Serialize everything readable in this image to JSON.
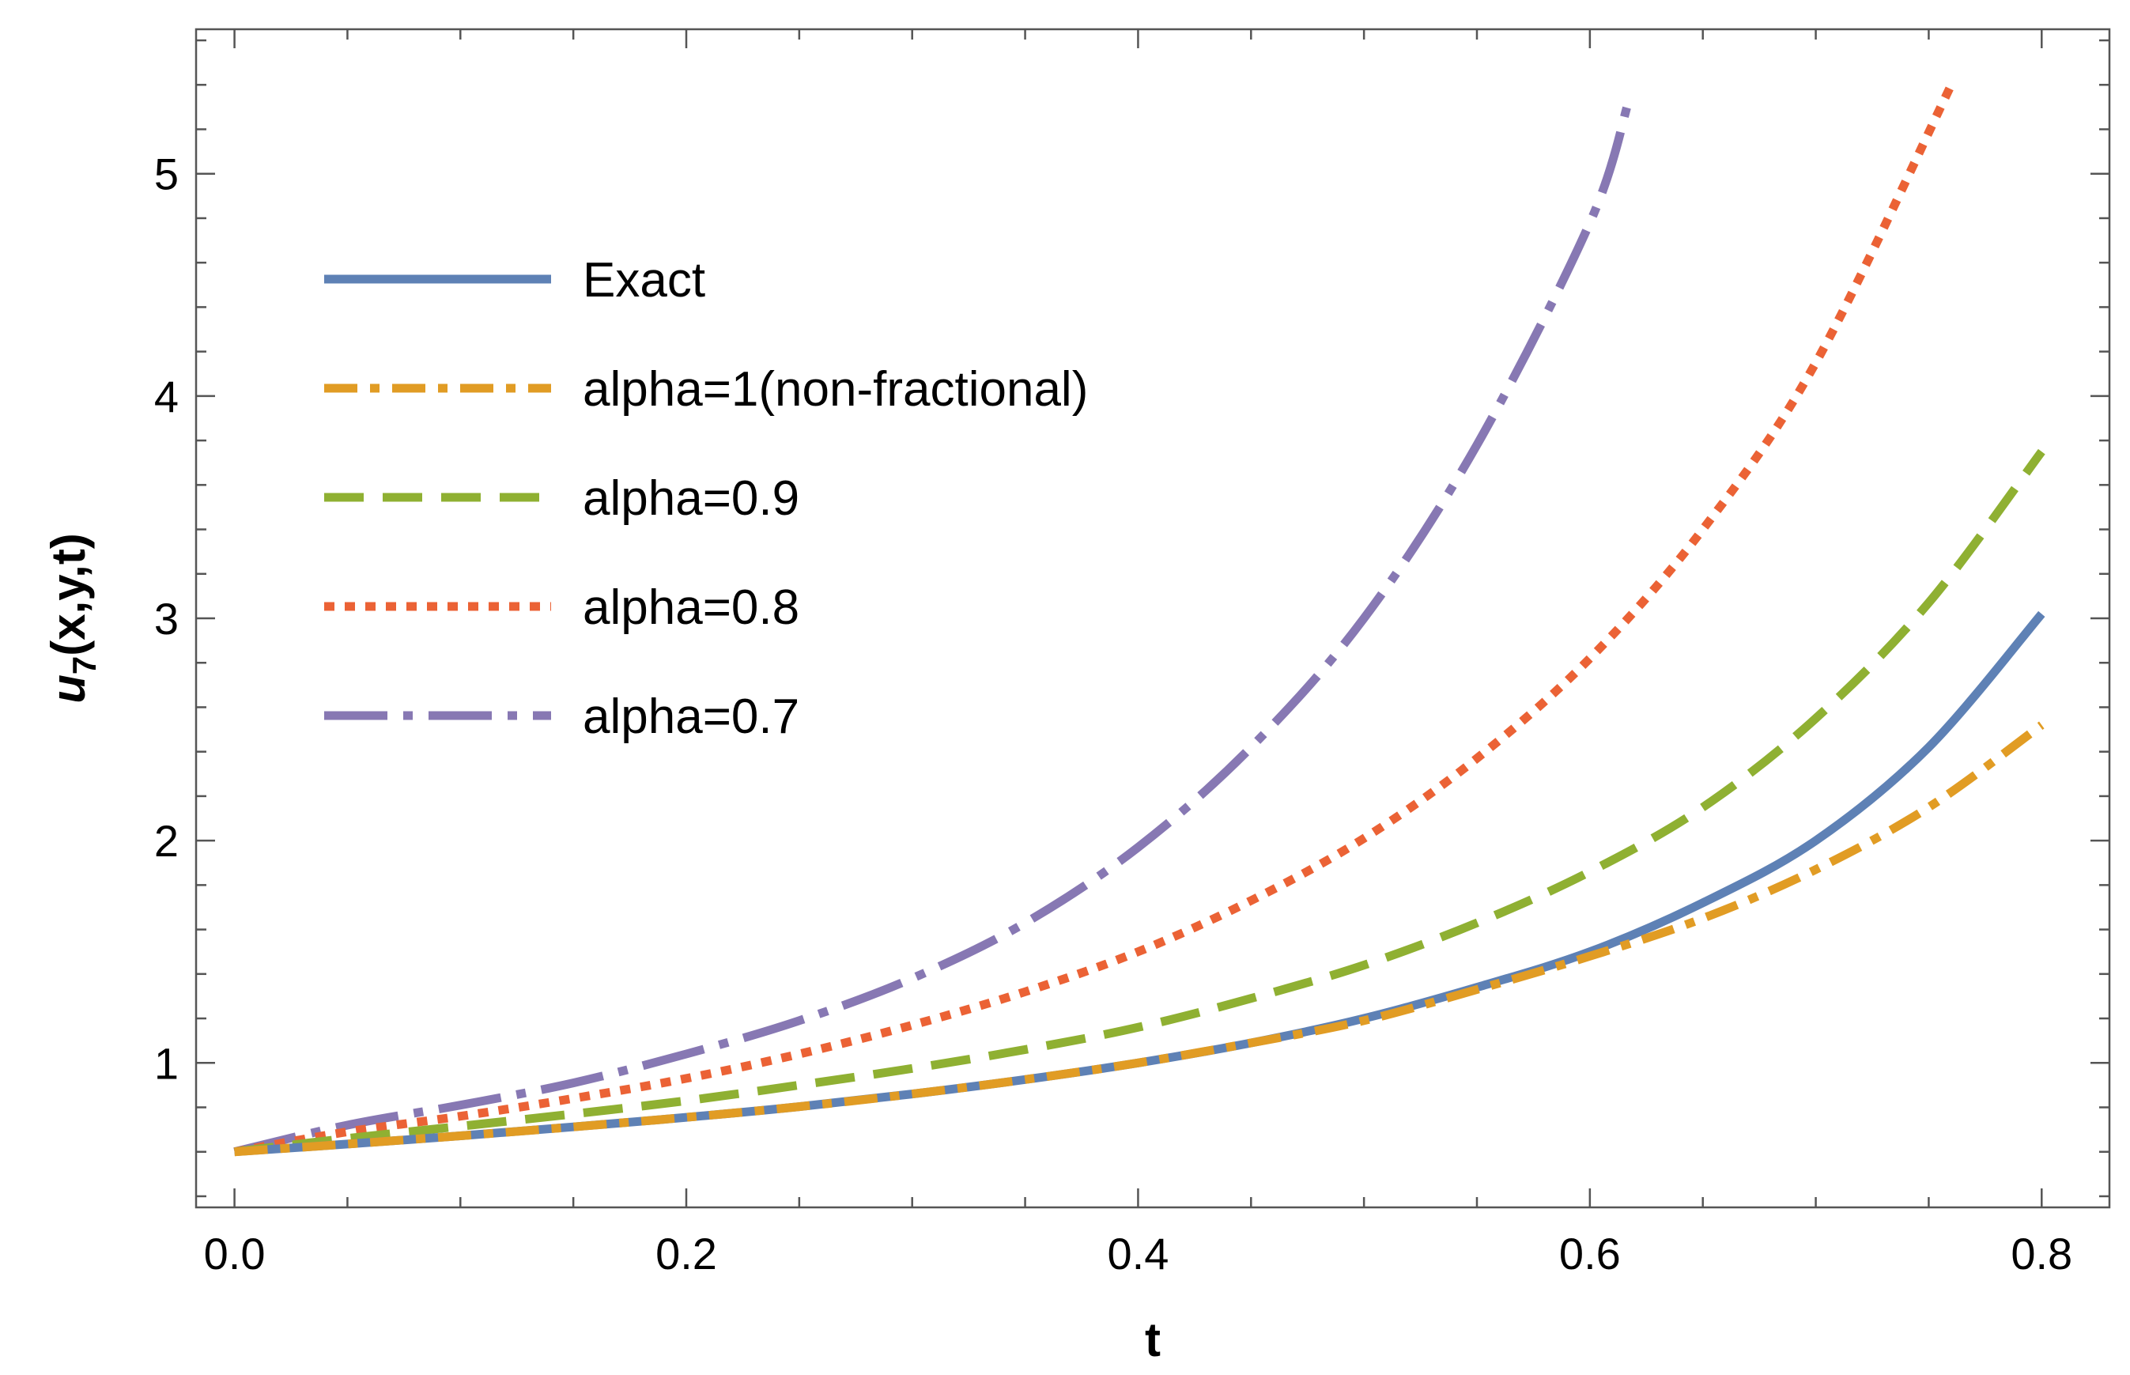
{
  "chart_data": {
    "type": "line",
    "title": "",
    "xlabel": "t",
    "ylabel_main": "u",
    "ylabel_sub": "7",
    "ylabel_rest": "(x,y,t)",
    "xlim": [
      -0.017,
      0.83
    ],
    "ylim": [
      0.35,
      5.65
    ],
    "x_ticks": [
      0.0,
      0.2,
      0.4,
      0.6,
      0.8
    ],
    "x_tick_labels": [
      "0.0",
      "0.2",
      "0.4",
      "0.6",
      "0.8"
    ],
    "x_minor_step": 0.05,
    "y_ticks": [
      1,
      2,
      3,
      4,
      5
    ],
    "y_tick_labels": [
      "1",
      "2",
      "3",
      "4",
      "5"
    ],
    "y_minor_step": 0.2,
    "grid": false,
    "legend_position": "top-left",
    "series": [
      {
        "name": "Exact",
        "color": "#5E81B5",
        "style": "solid",
        "x": [
          0,
          0.05,
          0.1,
          0.15,
          0.2,
          0.25,
          0.3,
          0.35,
          0.4,
          0.45,
          0.5,
          0.55,
          0.6,
          0.65,
          0.7,
          0.75,
          0.8
        ],
        "y": [
          0.6,
          0.635,
          0.672,
          0.712,
          0.755,
          0.803,
          0.86,
          0.925,
          1.0,
          1.09,
          1.2,
          1.34,
          1.5,
          1.72,
          2.0,
          2.42,
          3.02
        ]
      },
      {
        "name": "alpha=1(non-fractional)",
        "color": "#E19C24",
        "style": "dashdot",
        "x": [
          0,
          0.05,
          0.1,
          0.15,
          0.2,
          0.25,
          0.3,
          0.35,
          0.4,
          0.45,
          0.5,
          0.55,
          0.6,
          0.65,
          0.7,
          0.75,
          0.8
        ],
        "y": [
          0.6,
          0.635,
          0.672,
          0.712,
          0.755,
          0.803,
          0.86,
          0.925,
          1.0,
          1.09,
          1.19,
          1.33,
          1.48,
          1.65,
          1.87,
          2.15,
          2.52
        ]
      },
      {
        "name": "alpha=0.9",
        "color": "#8FB032",
        "style": "dashed",
        "x": [
          0,
          0.05,
          0.1,
          0.15,
          0.2,
          0.25,
          0.3,
          0.35,
          0.4,
          0.45,
          0.5,
          0.55,
          0.6,
          0.65,
          0.7,
          0.75,
          0.8
        ],
        "y": [
          0.6,
          0.66,
          0.715,
          0.77,
          0.83,
          0.9,
          0.975,
          1.06,
          1.16,
          1.29,
          1.44,
          1.63,
          1.86,
          2.15,
          2.55,
          3.07,
          3.75
        ]
      },
      {
        "name": "alpha=0.8",
        "color": "#EB6235",
        "style": "dotted",
        "x": [
          0,
          0.05,
          0.1,
          0.15,
          0.2,
          0.25,
          0.3,
          0.35,
          0.4,
          0.45,
          0.5,
          0.55,
          0.6,
          0.65,
          0.7,
          0.76
        ],
        "y": [
          0.6,
          0.69,
          0.76,
          0.84,
          0.93,
          1.04,
          1.17,
          1.32,
          1.5,
          1.73,
          2.01,
          2.37,
          2.82,
          3.4,
          4.15,
          5.4
        ]
      },
      {
        "name": "alpha=0.7",
        "color": "#8778B3",
        "style": "longdashdot",
        "x": [
          0,
          0.05,
          0.1,
          0.15,
          0.2,
          0.25,
          0.3,
          0.35,
          0.4,
          0.45,
          0.5,
          0.55,
          0.6,
          0.617
        ],
        "y": [
          0.6,
          0.72,
          0.81,
          0.91,
          1.04,
          1.19,
          1.38,
          1.63,
          1.97,
          2.42,
          3.0,
          3.78,
          4.78,
          5.32
        ]
      }
    ]
  }
}
